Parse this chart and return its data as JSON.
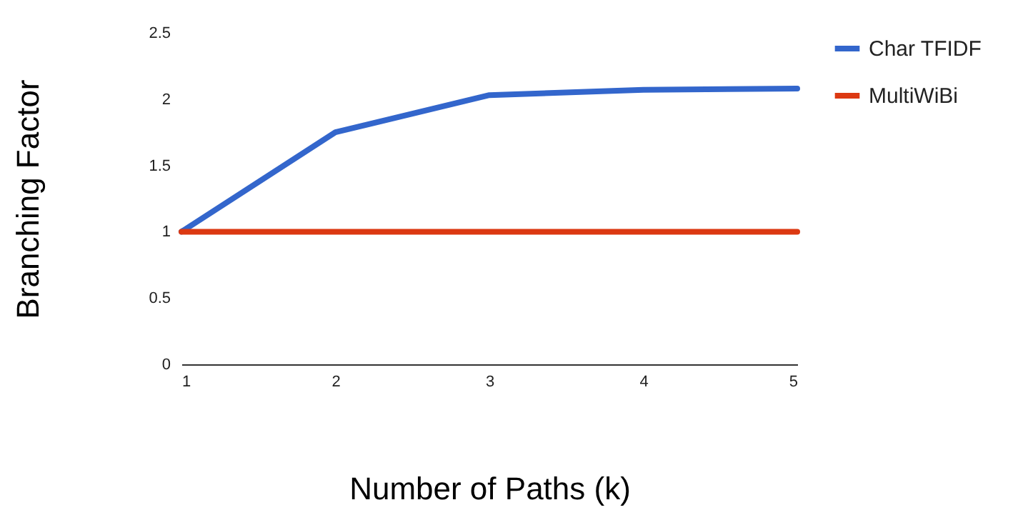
{
  "chart_data": {
    "type": "line",
    "xlabel": "Number of Paths (k)",
    "ylabel": "Branching Factor",
    "x": [
      1,
      2,
      3,
      4,
      5
    ],
    "series": [
      {
        "name": "Char TFIDF",
        "color": "#3366cc",
        "values": [
          1,
          1.75,
          2.03,
          2.07,
          2.08
        ]
      },
      {
        "name": "MultiWiBi",
        "color": "#dc3912",
        "values": [
          1,
          1,
          1,
          1,
          1
        ]
      }
    ],
    "xlim": [
      1,
      5
    ],
    "xticks": [
      1,
      2,
      3,
      4,
      5
    ],
    "ylim": [
      0,
      2.5
    ],
    "yticks": [
      0,
      0.5,
      1,
      1.5,
      2,
      2.5
    ],
    "grid": false,
    "legend": "top right",
    "marker": "none",
    "line_style": "solid"
  }
}
